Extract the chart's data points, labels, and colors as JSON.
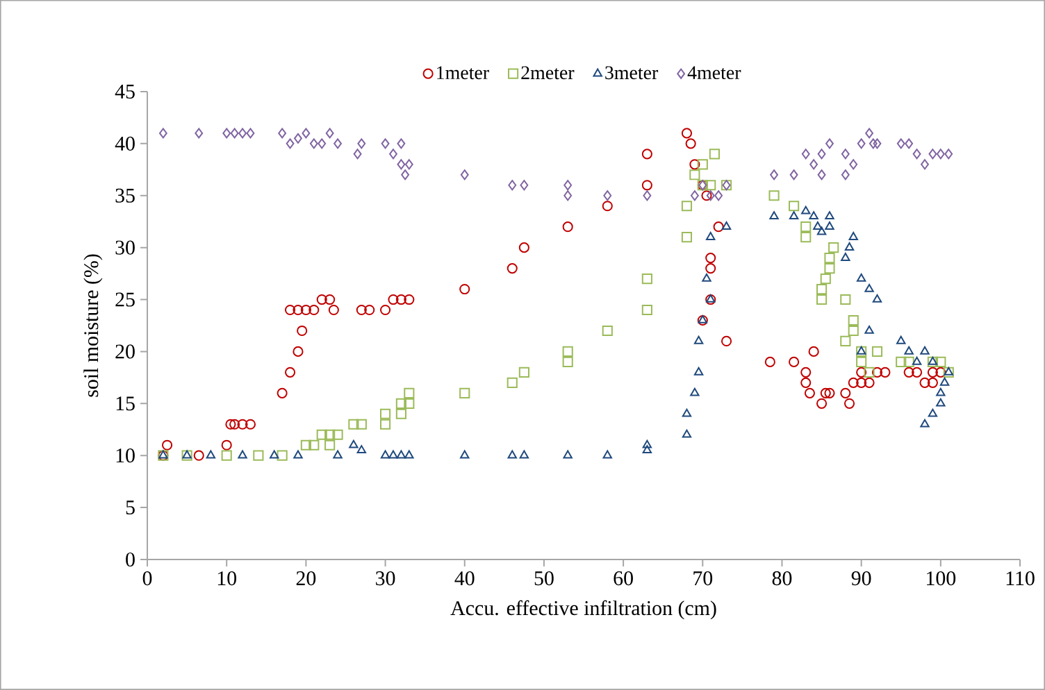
{
  "chart_data": {
    "type": "scatter",
    "xlabel": "Accu. effective infiltration (cm)",
    "ylabel": "soil moisture (%)",
    "xlim": [
      0,
      110
    ],
    "ylim": [
      0,
      45
    ],
    "xticks": [
      0,
      10,
      20,
      30,
      40,
      50,
      60,
      70,
      80,
      90,
      100,
      110
    ],
    "yticks": [
      0,
      5,
      10,
      15,
      20,
      25,
      30,
      35,
      40,
      45
    ],
    "grid": false,
    "legend": "top",
    "series": [
      {
        "name": "1meter",
        "color": "#c00000",
        "marker": "circle",
        "x": [
          2,
          2.5,
          6.5,
          10,
          10.5,
          11,
          12,
          13,
          17,
          18,
          19,
          19.5,
          18,
          19,
          20,
          21,
          22,
          23,
          23.5,
          27,
          28,
          30,
          31,
          32,
          33,
          40,
          46,
          47.5,
          53,
          58,
          63,
          63,
          68,
          68.5,
          69,
          70,
          70.5,
          71,
          71,
          70,
          71,
          72,
          73,
          78.5,
          81.5,
          83,
          83,
          84,
          83.5,
          85,
          85.5,
          86,
          88,
          88.5,
          89,
          90,
          90,
          91,
          92,
          93,
          96,
          97,
          98,
          99,
          99,
          100
        ],
        "values": [
          10,
          11,
          10,
          11,
          13,
          13,
          13,
          13,
          16,
          18,
          20,
          22,
          24,
          24,
          24,
          24,
          25,
          25,
          24,
          24,
          24,
          24,
          25,
          25,
          25,
          26,
          28,
          30,
          32,
          34,
          36,
          39,
          41,
          40,
          38,
          36,
          35,
          29,
          28,
          23,
          25,
          32,
          21,
          19,
          19,
          18,
          17,
          20,
          16,
          15,
          16,
          16,
          16,
          15,
          17,
          17,
          18,
          17,
          18,
          18,
          18,
          18,
          17,
          17,
          18,
          18
        ]
      },
      {
        "name": "2meter",
        "color": "#9bbb59",
        "marker": "square",
        "x": [
          2,
          5,
          10,
          14,
          17,
          20,
          21,
          22,
          23,
          23,
          24,
          26,
          27,
          30,
          30,
          32,
          32,
          33,
          33,
          40,
          46,
          47.5,
          53,
          53,
          58,
          63,
          63,
          68,
          68,
          69,
          70,
          71,
          71.5,
          70,
          73,
          79,
          81.5,
          83,
          83,
          85,
          85,
          85.5,
          86,
          86,
          86.5,
          88,
          88,
          89,
          89,
          90,
          90,
          91,
          92,
          95,
          96,
          99,
          100,
          101
        ],
        "values": [
          10,
          10,
          10,
          10,
          10,
          11,
          11,
          12,
          12,
          11,
          12,
          13,
          13,
          14,
          13,
          14,
          15,
          16,
          15,
          16,
          17,
          18,
          19,
          20,
          22,
          24,
          27,
          31,
          34,
          37,
          38,
          36,
          39,
          36,
          36,
          35,
          34,
          32,
          31,
          25,
          26,
          27,
          28,
          29,
          30,
          21,
          25,
          22,
          23,
          20,
          19,
          18,
          20,
          19,
          19,
          19,
          19,
          18
        ]
      },
      {
        "name": "3meter",
        "color": "#1f497d",
        "marker": "triangle",
        "x": [
          2,
          5,
          8,
          12,
          16,
          19,
          24,
          26,
          27,
          30,
          31,
          32,
          33,
          40,
          46,
          47.5,
          53,
          58,
          63,
          63,
          68,
          68,
          69,
          69.5,
          69.5,
          70,
          71,
          70.5,
          71,
          73,
          79,
          81.5,
          83,
          84,
          84.5,
          85,
          86,
          86,
          88,
          88.5,
          89,
          90,
          91,
          92,
          91,
          90,
          95,
          96,
          97,
          98,
          99,
          100,
          100,
          100.5,
          101,
          99,
          98
        ],
        "values": [
          10,
          10,
          10,
          10,
          10,
          10,
          10,
          11,
          10.5,
          10,
          10,
          10,
          10,
          10,
          10,
          10,
          10,
          10,
          10.5,
          11,
          12,
          14,
          16,
          18,
          21,
          23,
          25,
          27,
          31,
          32,
          33,
          33,
          33.5,
          33,
          32,
          31.5,
          32,
          33,
          29,
          30,
          31,
          27,
          26,
          25,
          22,
          20,
          21,
          20,
          19,
          13,
          14,
          15,
          16,
          17,
          18,
          19,
          20
        ]
      },
      {
        "name": "4meter",
        "color": "#8064a2",
        "marker": "diamond",
        "x": [
          2,
          6.5,
          10,
          11,
          12,
          13,
          17,
          18,
          19,
          20,
          21,
          22,
          23,
          24,
          26.5,
          27,
          30,
          31,
          32,
          32,
          32.5,
          33,
          40,
          46,
          47.5,
          53,
          53,
          58,
          63,
          69,
          70,
          71,
          72,
          73,
          79,
          81.5,
          83,
          84,
          85,
          85,
          86,
          88,
          88,
          89,
          90,
          91,
          91.5,
          92,
          95,
          96,
          97,
          98,
          99,
          100,
          101
        ],
        "values": [
          41,
          41,
          41,
          41,
          41,
          41,
          41,
          40,
          40.5,
          41,
          40,
          40,
          41,
          40,
          39,
          40,
          40,
          39,
          40,
          38,
          37,
          38,
          37,
          36,
          36,
          36,
          35,
          35,
          35,
          35,
          36,
          35,
          35,
          36,
          37,
          37,
          39,
          38,
          37,
          39,
          40,
          39,
          37,
          38,
          40,
          41,
          40,
          40,
          40,
          40,
          39,
          38,
          39,
          39,
          39
        ]
      }
    ]
  }
}
